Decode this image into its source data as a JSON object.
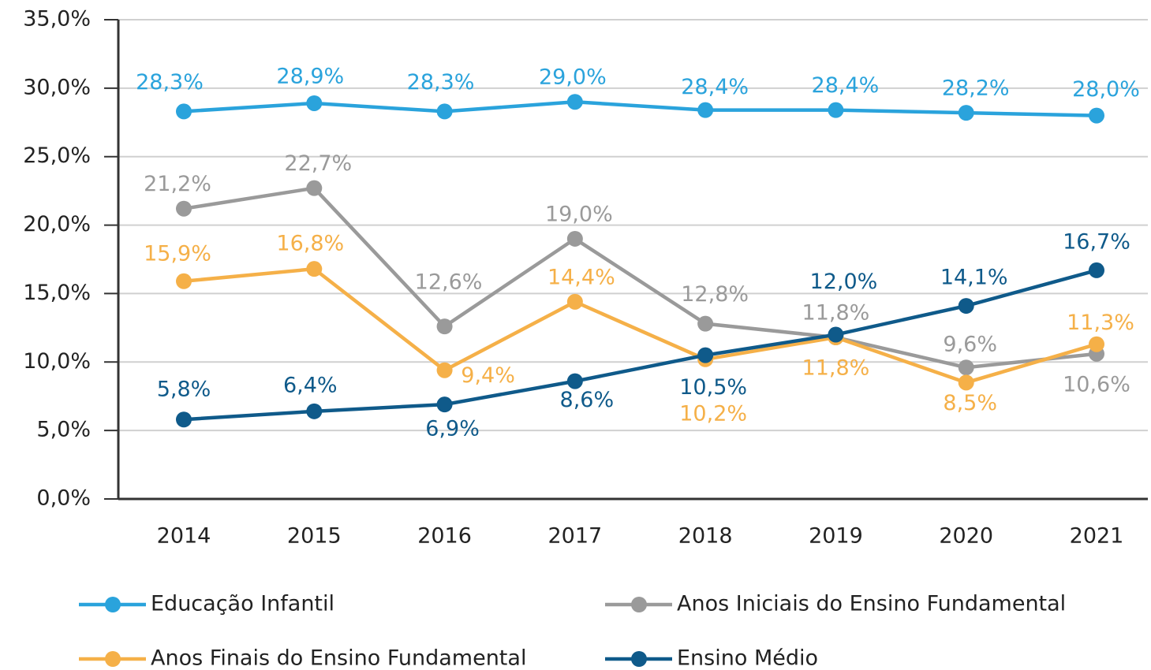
{
  "chart_data": {
    "type": "line",
    "categories": [
      "2014",
      "2015",
      "2016",
      "2017",
      "2018",
      "2019",
      "2020",
      "2021"
    ],
    "ylim": [
      0,
      35
    ],
    "yticks": [
      {
        "value": 0,
        "label": "0,0%"
      },
      {
        "value": 5,
        "label": "5,0%"
      },
      {
        "value": 10,
        "label": "10,0%"
      },
      {
        "value": 15,
        "label": "15,0%"
      },
      {
        "value": 20,
        "label": "20,0%"
      },
      {
        "value": 25,
        "label": "25,0%"
      },
      {
        "value": 30,
        "label": "30,0%"
      },
      {
        "value": 35,
        "label": "35,0%"
      }
    ],
    "grid": true,
    "series": [
      {
        "name": "Educação Infantil",
        "color": "#2aa3dc",
        "values": [
          28.3,
          28.9,
          28.3,
          29.0,
          28.4,
          28.4,
          28.2,
          28.0
        ],
        "value_labels": [
          "28,3%",
          "28,9%",
          "28,3%",
          "29,0%",
          "28,4%",
          "28,4%",
          "28,2%",
          "28,0%"
        ]
      },
      {
        "name": "Anos Iniciais do Ensino Fundamental",
        "color": "#9a9a9a",
        "values": [
          21.2,
          22.7,
          12.6,
          19.0,
          12.8,
          11.8,
          9.6,
          10.6
        ],
        "value_labels": [
          "21,2%",
          "22,7%",
          "12,6%",
          "19,0%",
          "12,8%",
          "11,8%",
          "9,6%",
          "10,6%"
        ]
      },
      {
        "name": "Anos Finais do Ensino Fundamental",
        "color": "#f5b048",
        "values": [
          15.9,
          16.8,
          9.4,
          14.4,
          10.2,
          11.8,
          8.5,
          11.3
        ],
        "value_labels": [
          "15,9%",
          "16,8%",
          "9,4%",
          "14,4%",
          "10,2%",
          "11,8%",
          "8,5%",
          "11,3%"
        ]
      },
      {
        "name": "Ensino Médio",
        "color": "#0f5a8a",
        "values": [
          5.8,
          6.4,
          6.9,
          8.6,
          10.5,
          12.0,
          14.1,
          16.7
        ],
        "value_labels": [
          "5,8%",
          "6,4%",
          "6,9%",
          "8,6%",
          "10,5%",
          "12,0%",
          "14,1%",
          "16,7%"
        ]
      }
    ]
  }
}
